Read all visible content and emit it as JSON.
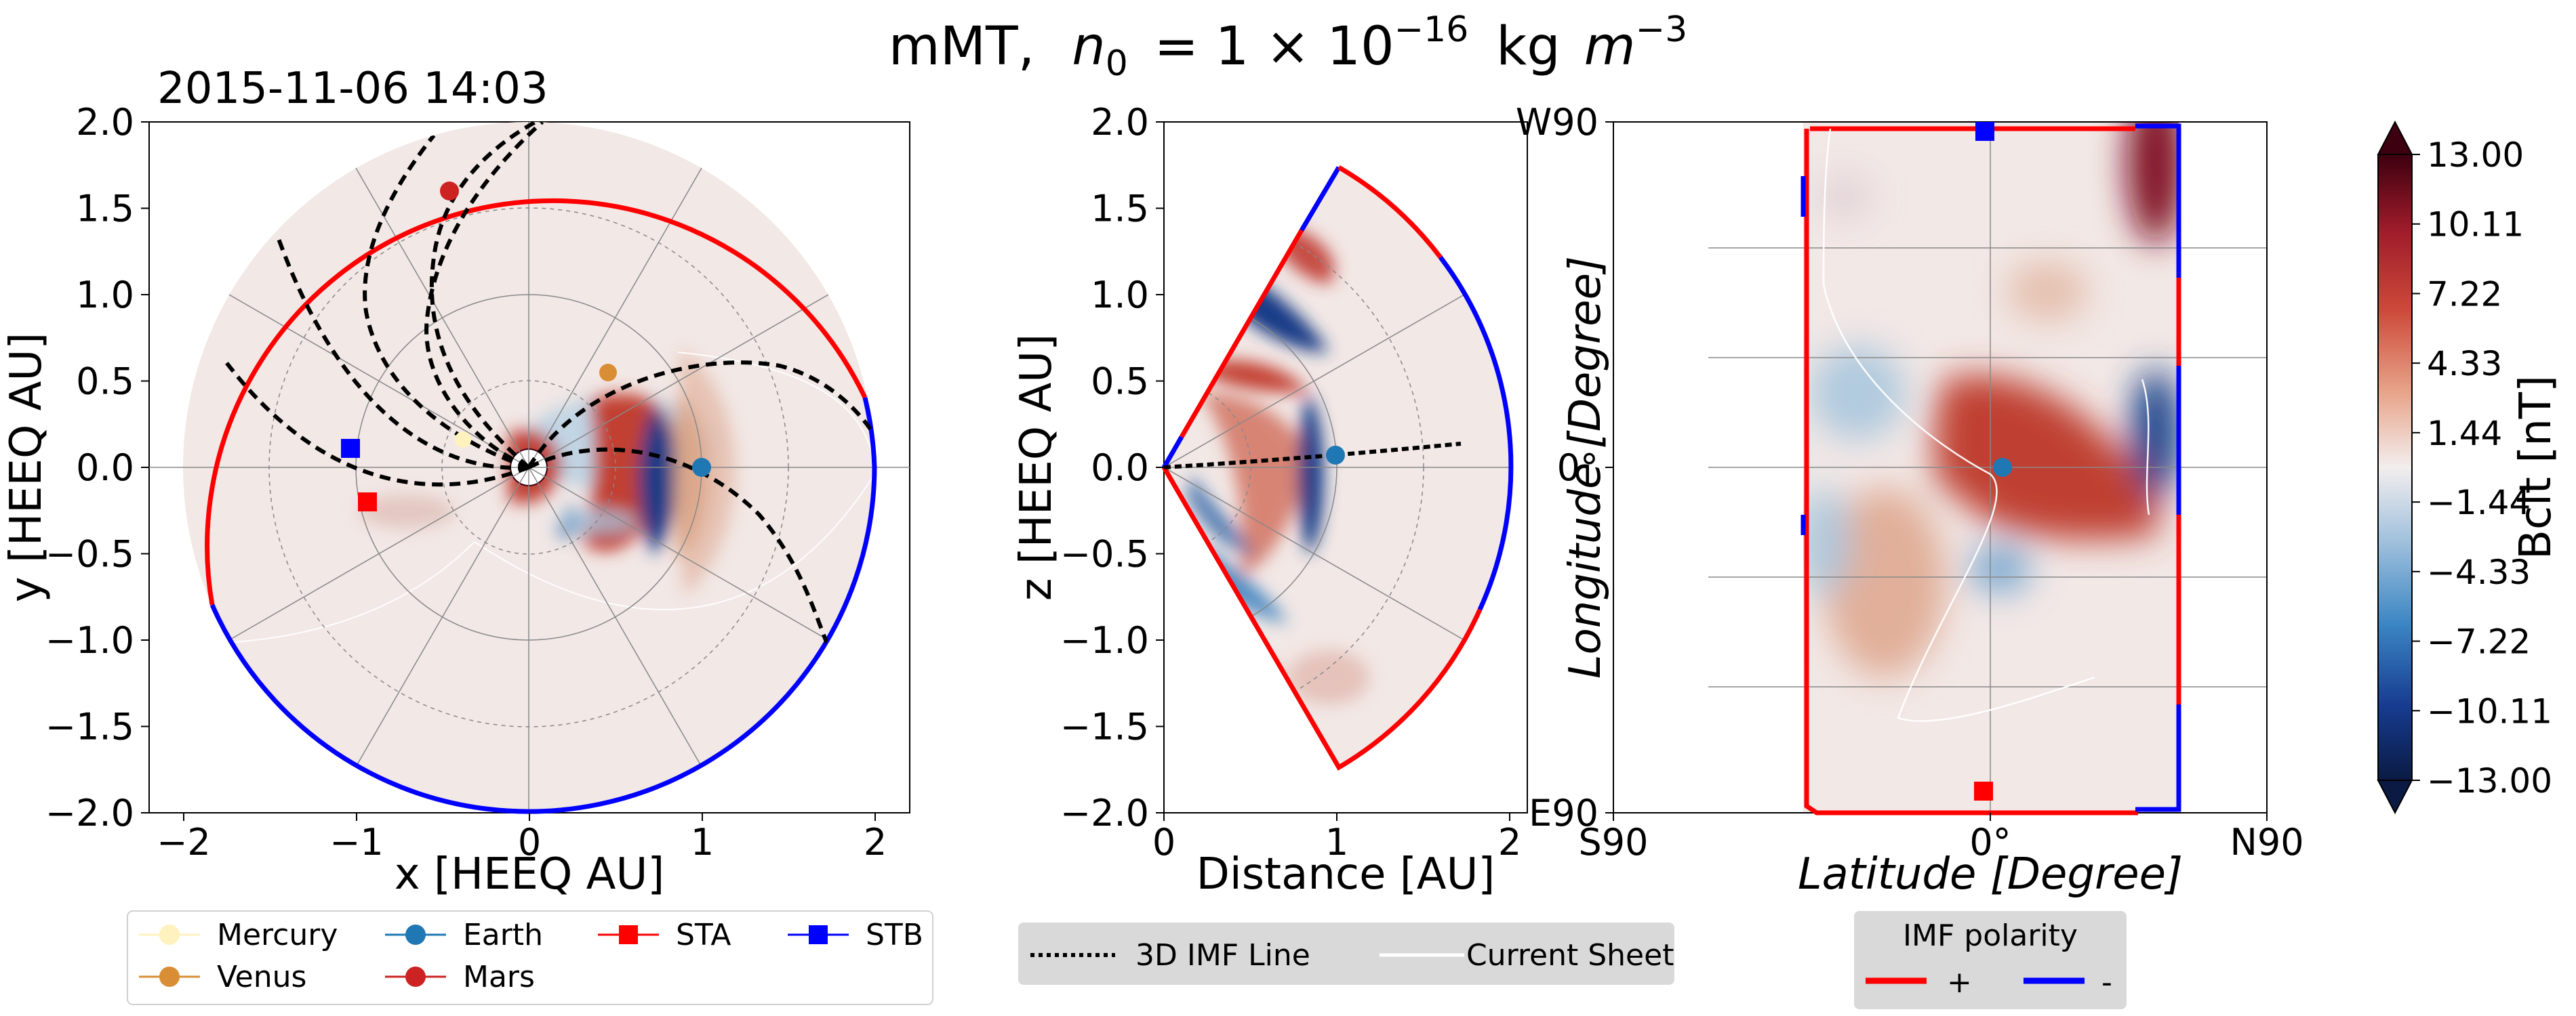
{
  "title": "mMT,  n₀ = 1 × 10⁻¹⁶ kg m⁻³",
  "title_parts": {
    "prefix": "mMT,",
    "n": "n",
    "sub": "0",
    "eq": "= 1 × 10",
    "exp": "−16",
    "unit_kg": "kg",
    "unit_m": "m",
    "unit_exp": "−3"
  },
  "timestamp": "2015-11-06 14:03",
  "colors": {
    "positive_polarity": "#ff0000",
    "negative_polarity": "#0000ff",
    "background": "#f2e8e6",
    "grid": "#888888",
    "imf_line": "#000000"
  },
  "chart_data": [
    {
      "type": "heatmap",
      "name": "equatorial-plane",
      "xlabel": "x [HEEQ AU]",
      "ylabel": "y [HEEQ AU]",
      "xlim": [
        -2.2,
        2.2
      ],
      "ylim": [
        -2.0,
        2.0
      ],
      "xticks": [
        "−2",
        "−1",
        "0",
        "1",
        "2"
      ],
      "yticks": [
        "−2.0",
        "−1.5",
        "−1.0",
        "−0.5",
        "0.0",
        "0.5",
        "1.0",
        "1.5",
        "2.0"
      ],
      "xtick_values": [
        -2,
        -1,
        0,
        1,
        2
      ],
      "ytick_values": [
        -2.0,
        -1.5,
        -1.0,
        -0.5,
        0.0,
        0.5,
        1.0,
        1.5,
        2.0
      ],
      "grid": true,
      "bodies": [
        {
          "name": "Mercury",
          "x": -0.38,
          "y": 0.16,
          "marker": "circle",
          "color": "#fff2bf"
        },
        {
          "name": "Venus",
          "x": 0.46,
          "y": 0.55,
          "marker": "circle",
          "color": "#d98e35"
        },
        {
          "name": "Earth",
          "x": 0.99,
          "y": 0.0,
          "marker": "circle",
          "color": "#1f77b4"
        },
        {
          "name": "Mars",
          "x": -0.46,
          "y": 1.6,
          "marker": "circle",
          "color": "#cc2222"
        },
        {
          "name": "STA",
          "x": -0.95,
          "y": -0.2,
          "marker": "square",
          "color": "#ff0000"
        },
        {
          "name": "STB",
          "x": -1.03,
          "y": 0.11,
          "marker": "square",
          "color": "#0000ff"
        }
      ]
    },
    {
      "type": "heatmap",
      "name": "meridional-plane",
      "xlabel": "Distance [AU]",
      "ylabel": "z [HEEQ AU]",
      "xlim": [
        0.0,
        2.1
      ],
      "ylim": [
        -2.0,
        2.0
      ],
      "xticks": [
        "0",
        "1",
        "2"
      ],
      "yticks": [
        "−2.0",
        "−1.5",
        "−1.0",
        "−0.5",
        "0.0",
        "0.5",
        "1.0",
        "1.5",
        "2.0"
      ],
      "xtick_values": [
        0,
        1,
        2
      ],
      "ytick_values": [
        -2.0,
        -1.5,
        -1.0,
        -0.5,
        0.0,
        0.5,
        1.0,
        1.5,
        2.0
      ],
      "grid": true,
      "bodies": [
        {
          "name": "Earth",
          "x": 0.99,
          "y": 0.07,
          "marker": "circle",
          "color": "#1f77b4"
        }
      ]
    },
    {
      "type": "heatmap",
      "name": "latitude-longitude-map",
      "xlabel": "Latitude [Degree]",
      "ylabel": "Longitude [Degree]",
      "xlim": [
        -90,
        90
      ],
      "ylim": [
        -90,
        90
      ],
      "xticks": [
        "S90",
        "0°",
        "N90"
      ],
      "yticks": [
        "E90",
        "0°",
        "W90"
      ],
      "grid": true,
      "bodies": [
        {
          "name": "Earth",
          "x": 2,
          "y": 0,
          "marker": "circle",
          "color": "#1f77b4"
        },
        {
          "name": "STB",
          "x": -4,
          "y": 88,
          "marker": "square",
          "color": "#0000ff"
        },
        {
          "name": "STA",
          "x": -5,
          "y": -85,
          "marker": "square",
          "color": "#ff0000"
        }
      ]
    }
  ],
  "colorbar": {
    "label": "Bclt  [nT]",
    "range": [
      -13.0,
      13.0
    ],
    "ticks": [
      "13.00",
      "10.11",
      "7.22",
      "4.33",
      "1.44",
      "−1.44",
      "−4.33",
      "−7.22",
      "−10.11",
      "−13.00"
    ],
    "tick_values": [
      13.0,
      10.11,
      7.22,
      4.33,
      1.44,
      -1.44,
      -4.33,
      -7.22,
      -10.11,
      -13.0
    ]
  },
  "legend_bodies": {
    "items": [
      {
        "label": "Mercury",
        "marker": "circle",
        "color": "#fff2bf"
      },
      {
        "label": "Earth",
        "marker": "circle",
        "color": "#1f77b4"
      },
      {
        "label": "STA",
        "marker": "square",
        "color": "#ff0000"
      },
      {
        "label": "STB",
        "marker": "square",
        "color": "#0000ff"
      },
      {
        "label": "Venus",
        "marker": "circle",
        "color": "#d98e35"
      },
      {
        "label": "Mars",
        "marker": "circle",
        "color": "#cc2222"
      }
    ]
  },
  "legend_lines": {
    "imf_line": "3D IMF Line",
    "current_sheet": "Current Sheet"
  },
  "legend_polarity": {
    "title": "IMF polarity",
    "positive": "+",
    "negative": "-"
  }
}
